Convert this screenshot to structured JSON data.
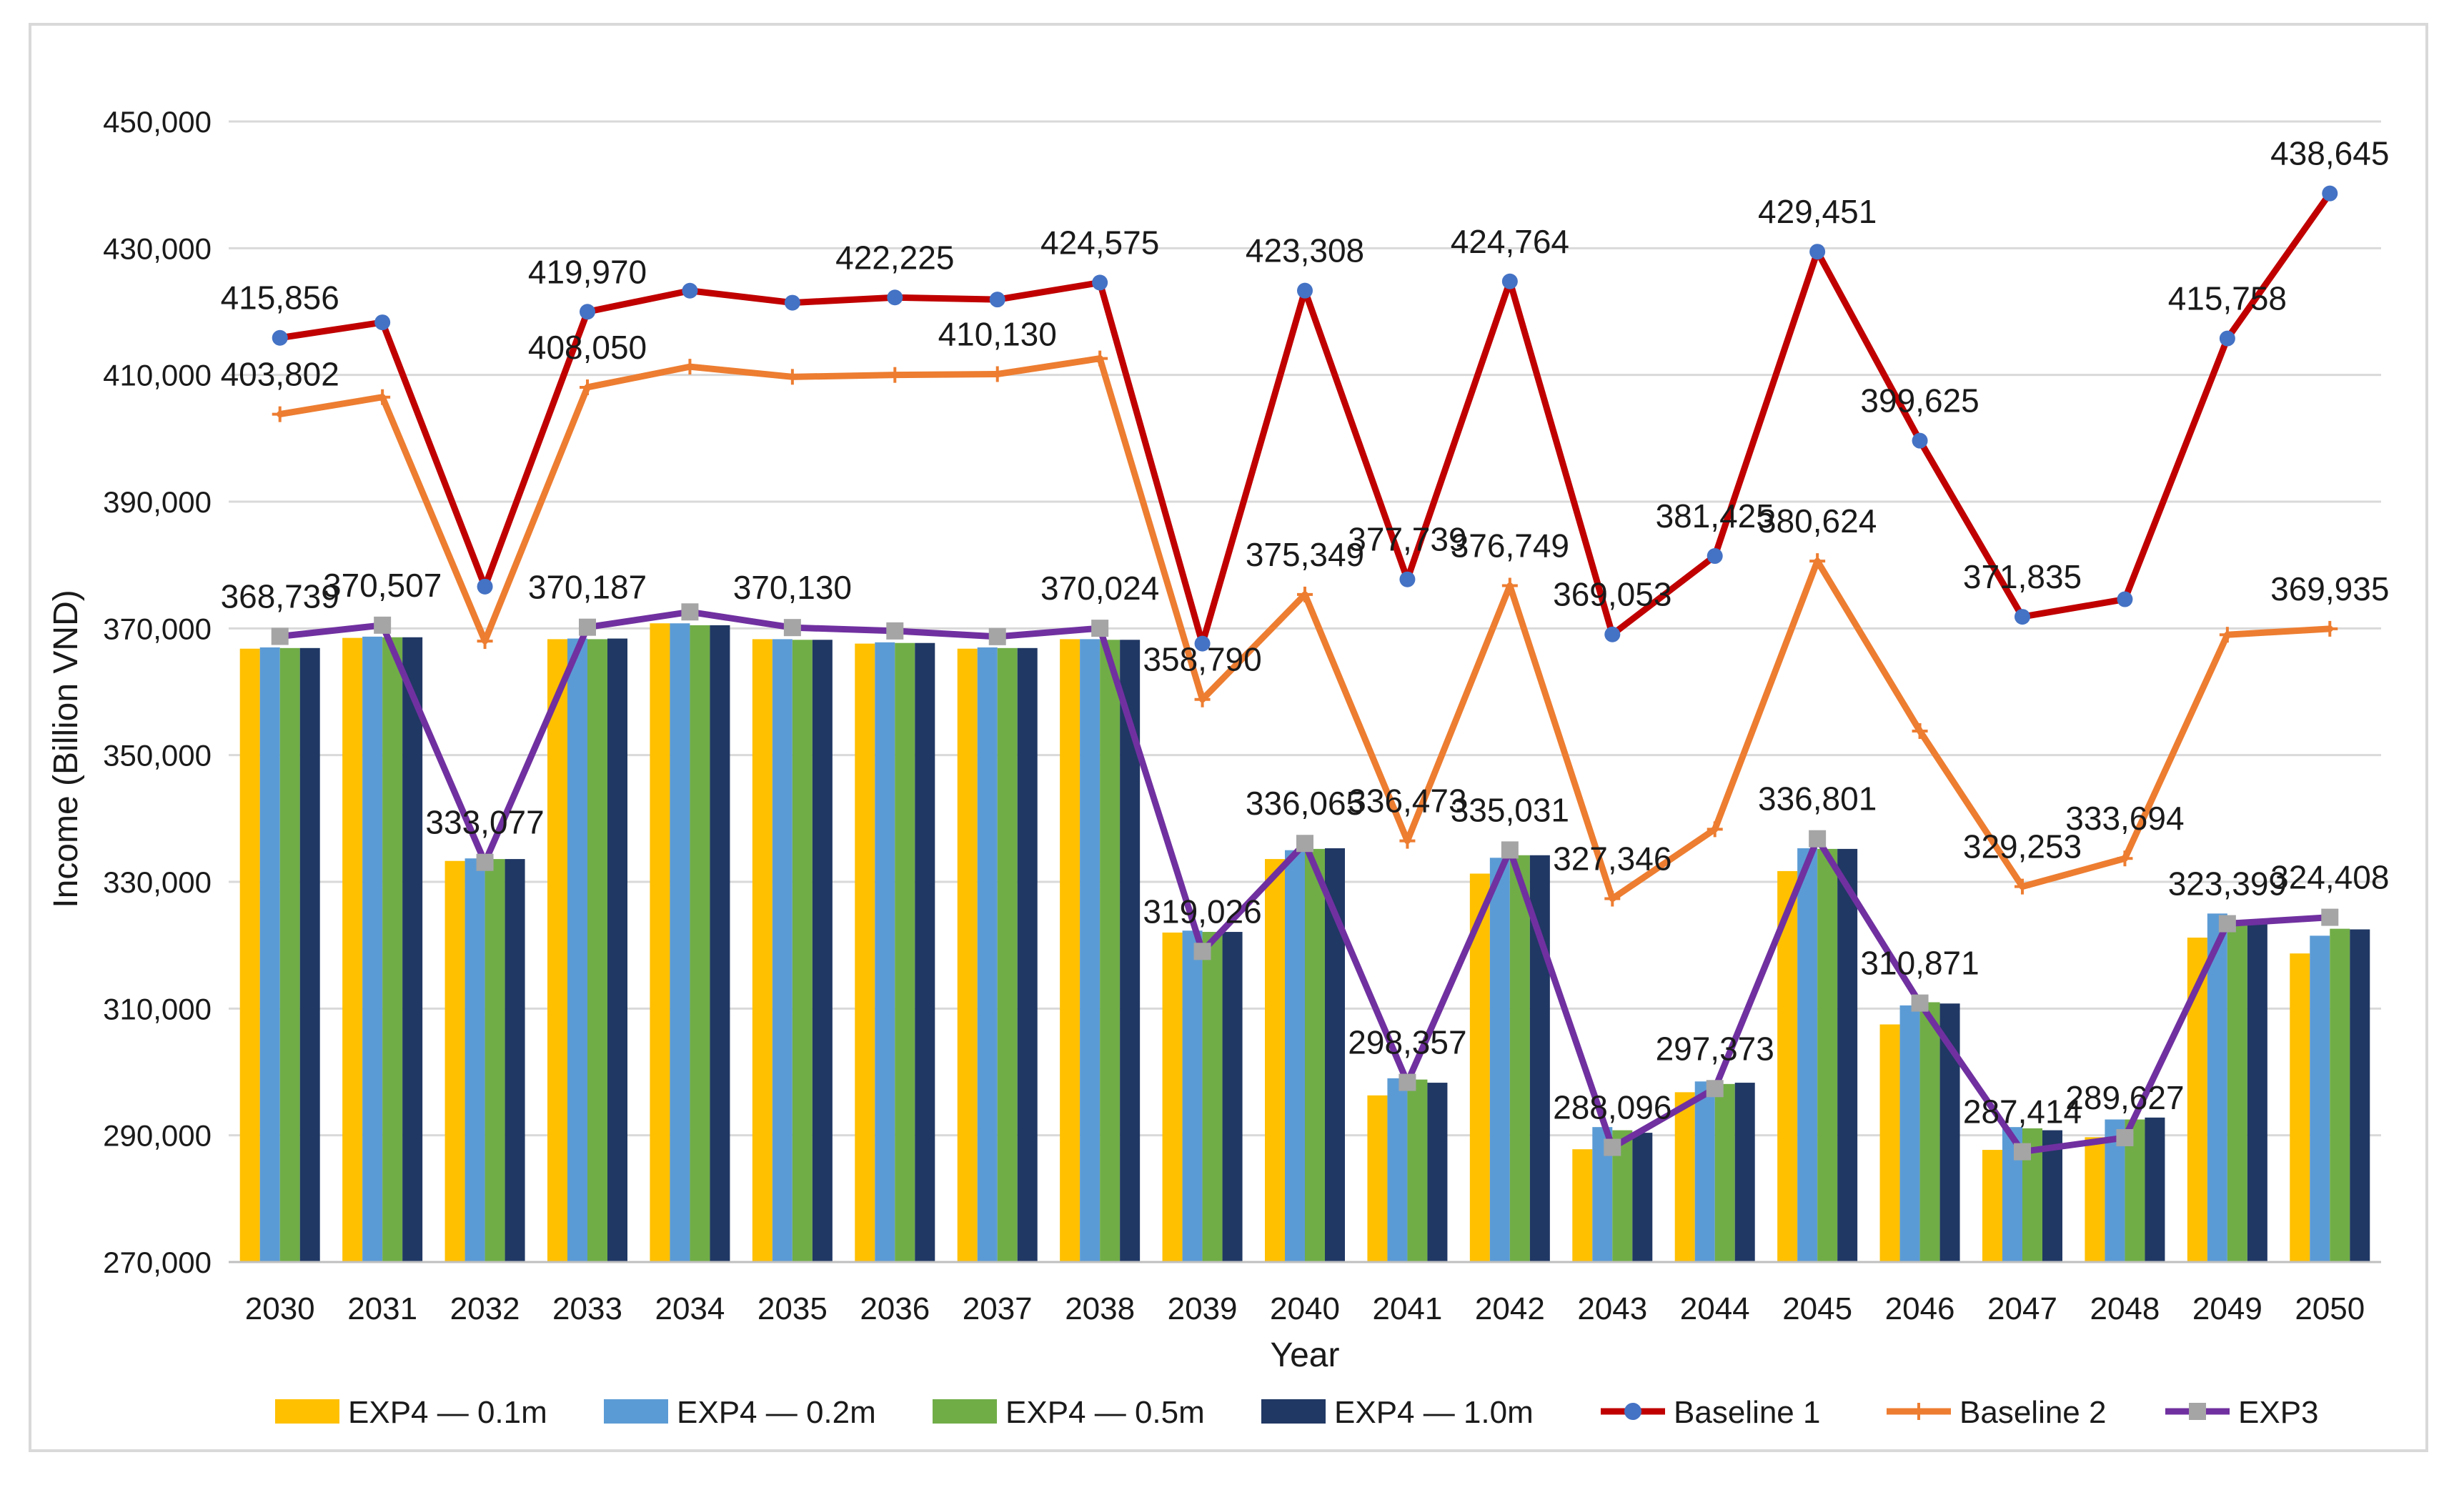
{
  "chart_data": {
    "type": "bar",
    "title": "",
    "xlabel": "Year",
    "ylabel": "Income  (Billion VND)",
    "ylim": [
      270000,
      450000
    ],
    "ytick_step": 20000,
    "y_ticks": [
      "270,000",
      "290,000",
      "310,000",
      "330,000",
      "350,000",
      "370,000",
      "390,000",
      "410,000",
      "430,000",
      "450,000"
    ],
    "grid": true,
    "legend_position": "bottom",
    "categories": [
      "2030",
      "2031",
      "2032",
      "2033",
      "2034",
      "2035",
      "2036",
      "2037",
      "2038",
      "2039",
      "2040",
      "2041",
      "2042",
      "2043",
      "2044",
      "2045",
      "2046",
      "2047",
      "2048",
      "2049",
      "2050"
    ],
    "bar_series": [
      {
        "name": "EXP4 — 0.1m",
        "color": "#FFC000",
        "values": [
          366800,
          368500,
          333300,
          368300,
          370800,
          368300,
          367600,
          366800,
          368300,
          322000,
          333600,
          296300,
          331300,
          287800,
          296800,
          331700,
          307500,
          287700,
          289700,
          321200,
          318700
        ]
      },
      {
        "name": "EXP4 — 0.2m",
        "color": "#5B9BD5",
        "values": [
          367000,
          368700,
          333700,
          368400,
          370800,
          368300,
          367800,
          367000,
          368300,
          322300,
          335000,
          299000,
          333800,
          291300,
          298500,
          335300,
          310500,
          291300,
          292500,
          325000,
          321500
        ]
      },
      {
        "name": "EXP4 — 0.5m",
        "color": "#70AD47",
        "values": [
          366900,
          368600,
          333600,
          368300,
          370500,
          368200,
          367700,
          366900,
          368200,
          322100,
          335200,
          298800,
          334200,
          290800,
          298100,
          335200,
          311000,
          291100,
          292500,
          324000,
          322600
        ]
      },
      {
        "name": "EXP4 — 1.0m",
        "color": "#203864",
        "values": [
          366900,
          368600,
          333600,
          368400,
          370500,
          368200,
          367700,
          366900,
          368200,
          322100,
          335300,
          298300,
          334200,
          290400,
          298300,
          335200,
          310800,
          290800,
          292800,
          323800,
          322500
        ]
      }
    ],
    "line_series": [
      {
        "name": "Baseline 1",
        "color": "#C00000",
        "marker": "circle",
        "marker_color": "#4472C4",
        "values": [
          415856,
          418300,
          376600,
          419970,
          423300,
          421400,
          422225,
          421900,
          424575,
          367600,
          423308,
          377739,
          424764,
          369053,
          381425,
          429451,
          399625,
          371835,
          374600,
          415758,
          438645
        ]
      },
      {
        "name": "Baseline 2",
        "color": "#ED7D31",
        "marker": "plus",
        "values": [
          403802,
          406500,
          368000,
          408050,
          411300,
          409700,
          410000,
          410130,
          412600,
          358790,
          375349,
          336473,
          376749,
          327346,
          338300,
          380624,
          353800,
          329253,
          333694,
          369000,
          369935
        ]
      },
      {
        "name": "EXP3",
        "color": "#7030A0",
        "marker": "square",
        "marker_color": "#A5A5A5",
        "values": [
          368739,
          370507,
          333077,
          370187,
          372600,
          370130,
          369600,
          368700,
          370024,
          319026,
          336065,
          298357,
          335031,
          288096,
          297373,
          336801,
          310871,
          287414,
          289627,
          323399,
          324408
        ]
      }
    ],
    "data_labels": [
      {
        "series": "Baseline 1",
        "year": "2030",
        "text": "415,856"
      },
      {
        "series": "Baseline 1",
        "year": "2033",
        "text": "419,970"
      },
      {
        "series": "Baseline 1",
        "year": "2036",
        "text": "422,225"
      },
      {
        "series": "Baseline 1",
        "year": "2038",
        "text": "424,575"
      },
      {
        "series": "Baseline 1",
        "year": "2040",
        "text": "423,308"
      },
      {
        "series": "Baseline 1",
        "year": "2041",
        "text": "377,739"
      },
      {
        "series": "Baseline 1",
        "year": "2042",
        "text": "424,764"
      },
      {
        "series": "Baseline 1",
        "year": "2043",
        "text": "369,053"
      },
      {
        "series": "Baseline 1",
        "year": "2044",
        "text": "381,425"
      },
      {
        "series": "Baseline 1",
        "year": "2045",
        "text": "429,451"
      },
      {
        "series": "Baseline 1",
        "year": "2046",
        "text": "399,625"
      },
      {
        "series": "Baseline 1",
        "year": "2047",
        "text": "371,835"
      },
      {
        "series": "Baseline 1",
        "year": "2049",
        "text": "415,758"
      },
      {
        "series": "Baseline 1",
        "year": "2050",
        "text": "438,645"
      },
      {
        "series": "Baseline 2",
        "year": "2030",
        "text": "403,802"
      },
      {
        "series": "Baseline 2",
        "year": "2033",
        "text": "408,050"
      },
      {
        "series": "Baseline 2",
        "year": "2037",
        "text": "410,130"
      },
      {
        "series": "Baseline 2",
        "year": "2039",
        "text": "358,790"
      },
      {
        "series": "Baseline 2",
        "year": "2040",
        "text": "375,349"
      },
      {
        "series": "Baseline 2",
        "year": "2041",
        "text": "336,473"
      },
      {
        "series": "Baseline 2",
        "year": "2042",
        "text": "376,749"
      },
      {
        "series": "Baseline 2",
        "year": "2043",
        "text": "327,346"
      },
      {
        "series": "Baseline 2",
        "year": "2045",
        "text": "380,624"
      },
      {
        "series": "Baseline 2",
        "year": "2047",
        "text": "329,253"
      },
      {
        "series": "Baseline 2",
        "year": "2048",
        "text": "333,694"
      },
      {
        "series": "Baseline 2",
        "year": "2050",
        "text": "369,935"
      },
      {
        "series": "EXP3",
        "year": "2030",
        "text": "368,739"
      },
      {
        "series": "EXP3",
        "year": "2031",
        "text": "370,507"
      },
      {
        "series": "EXP3",
        "year": "2032",
        "text": "333,077"
      },
      {
        "series": "EXP3",
        "year": "2033",
        "text": "370,187"
      },
      {
        "series": "EXP3",
        "year": "2035",
        "text": "370,130"
      },
      {
        "series": "EXP3",
        "year": "2038",
        "text": "370,024"
      },
      {
        "series": "EXP3",
        "year": "2039",
        "text": "319,026"
      },
      {
        "series": "EXP3",
        "year": "2040",
        "text": "336,065"
      },
      {
        "series": "EXP3",
        "year": "2041",
        "text": "298,357"
      },
      {
        "series": "EXP3",
        "year": "2042",
        "text": "335,031"
      },
      {
        "series": "EXP3",
        "year": "2043",
        "text": "288,096"
      },
      {
        "series": "EXP3",
        "year": "2044",
        "text": "297,373"
      },
      {
        "series": "EXP3",
        "year": "2045",
        "text": "336,801"
      },
      {
        "series": "EXP3",
        "year": "2046",
        "text": "310,871"
      },
      {
        "series": "EXP3",
        "year": "2047",
        "text": "287,414"
      },
      {
        "series": "EXP3",
        "year": "2048",
        "text": "289,627"
      },
      {
        "series": "EXP3",
        "year": "2049",
        "text": "323,399"
      },
      {
        "series": "EXP3",
        "year": "2050",
        "text": "324,408"
      }
    ]
  }
}
